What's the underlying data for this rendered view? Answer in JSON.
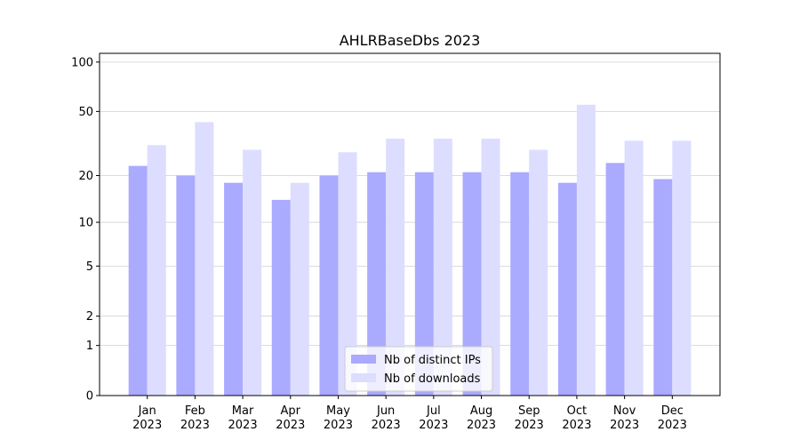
{
  "chart_data": {
    "type": "bar",
    "title": "AHLRBaseDbs 2023",
    "categories": [
      "Jan\n2023",
      "Feb\n2023",
      "Mar\n2023",
      "Apr\n2023",
      "May\n2023",
      "Jun\n2023",
      "Jul\n2023",
      "Aug\n2023",
      "Sep\n2023",
      "Oct\n2023",
      "Nov\n2023",
      "Dec\n2023"
    ],
    "series": [
      {
        "name": "Nb of distinct IPs",
        "color": "#aaaaff",
        "values": [
          23,
          20,
          18,
          14,
          20,
          21,
          21,
          21,
          21,
          18,
          24,
          19
        ]
      },
      {
        "name": "Nb of downloads",
        "color": "#ddddff",
        "values": [
          31,
          43,
          29,
          18,
          28,
          34,
          34,
          34,
          29,
          55,
          33,
          33
        ]
      }
    ],
    "yscale": "log1p",
    "ylim": [
      0,
      113
    ],
    "yticks": [
      0,
      1,
      2,
      5,
      10,
      20,
      50,
      100
    ],
    "grid": true,
    "legend": "lower center"
  }
}
